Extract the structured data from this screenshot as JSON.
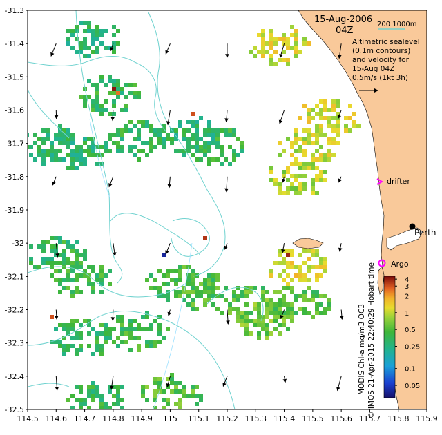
{
  "header": {
    "date": "15-Aug-2006",
    "time": "04Z",
    "scale_label": "200  1000m",
    "description_lines": [
      "Altimetric sealevel",
      "(0.1m contours)",
      "and velocity for",
      "15-Aug 04Z",
      "0.5m/s (1kt 3h)"
    ]
  },
  "axes": {
    "y_ticks": [
      "-31.3",
      "-31.4",
      "-31.5",
      "-31.6",
      "-31.7",
      "-31.8",
      "-31.9",
      "-32",
      "-32.1",
      "-32.2",
      "-32.3",
      "-32.4",
      "-32.5"
    ],
    "x_ticks": [
      "114.5",
      "114.6",
      "114.7",
      "114.8",
      "114.9",
      "115",
      "115.1",
      "115.2",
      "115.3",
      "115.4",
      "115.5",
      "115.6",
      "115.7",
      "115.8",
      "115.9"
    ],
    "lon_range": [
      114.5,
      115.9
    ],
    "lat_range": [
      -32.5,
      -31.3
    ]
  },
  "labels": {
    "drifter": "drifter",
    "perth": "Perth",
    "argo": "Argo",
    "colorbar_title": "MODIS Chl-a mg/m3 OC3",
    "credit": "© IMOS 21-Apr-2015 22:40:29 Hobart time"
  },
  "colorbar": {
    "ticks": [
      "4",
      "3",
      "2",
      "1",
      "0.5",
      "0.25",
      "0.1",
      "0.05"
    ],
    "scale": "log"
  },
  "colors": {
    "land": "#f9c99a",
    "contour": "#6fd2cf",
    "drifter_marker": "#ff00ff",
    "argo_marker": "#ff00ff",
    "low_chl": "#1e2a8a",
    "mid_chl": "#3ab043",
    "high_chl": "#e8c02a",
    "max_chl": "#8b1010"
  },
  "chart_data": {
    "type": "heatmap",
    "title": "",
    "xlabel": "",
    "ylabel": "",
    "xlim": [
      114.5,
      115.9
    ],
    "ylim": [
      -32.5,
      -31.3
    ],
    "colorbar_range": [
      0.03,
      4.5
    ],
    "grid": false,
    "points": [
      {
        "name": "Perth",
        "lon": 115.86,
        "lat": -31.95
      },
      {
        "name": "Argo",
        "lon": 115.74,
        "lat": -32.06
      },
      {
        "name": "drifter",
        "lon": 115.73,
        "lat": -31.81
      }
    ],
    "chl_patches": [
      {
        "lon": 114.58,
        "lat": -31.7,
        "value": 0.3
      },
      {
        "lon": 114.68,
        "lat": -31.72,
        "value": 0.3
      },
      {
        "lon": 114.78,
        "lat": -31.55,
        "value": 0.35
      },
      {
        "lon": 114.72,
        "lat": -31.38,
        "value": 0.3
      },
      {
        "lon": 114.88,
        "lat": -31.68,
        "value": 0.35
      },
      {
        "lon": 115.06,
        "lat": -31.67,
        "value": 0.3
      },
      {
        "lon": 115.16,
        "lat": -31.7,
        "value": 0.35
      },
      {
        "lon": 114.6,
        "lat": -32.03,
        "value": 0.35
      },
      {
        "lon": 114.68,
        "lat": -32.1,
        "value": 0.4
      },
      {
        "lon": 115.02,
        "lat": -32.12,
        "value": 0.45
      },
      {
        "lon": 115.14,
        "lat": -32.15,
        "value": 0.45
      },
      {
        "lon": 115.3,
        "lat": -32.18,
        "value": 0.5
      },
      {
        "lon": 114.68,
        "lat": -32.28,
        "value": 0.35
      },
      {
        "lon": 114.88,
        "lat": -32.26,
        "value": 0.4
      },
      {
        "lon": 115.0,
        "lat": -32.45,
        "value": 0.5
      },
      {
        "lon": 114.74,
        "lat": -32.46,
        "value": 0.35
      },
      {
        "lon": 115.48,
        "lat": -31.7,
        "value": 1.0
      },
      {
        "lon": 115.38,
        "lat": -31.4,
        "value": 1.1
      },
      {
        "lon": 115.55,
        "lat": -31.62,
        "value": 1.1
      },
      {
        "lon": 115.44,
        "lat": -31.8,
        "value": 0.9
      },
      {
        "lon": 115.44,
        "lat": -32.06,
        "value": 1.2
      },
      {
        "lon": 115.33,
        "lat": -32.22,
        "value": 0.6
      },
      {
        "lon": 115.45,
        "lat": -32.17,
        "value": 0.5
      }
    ]
  }
}
